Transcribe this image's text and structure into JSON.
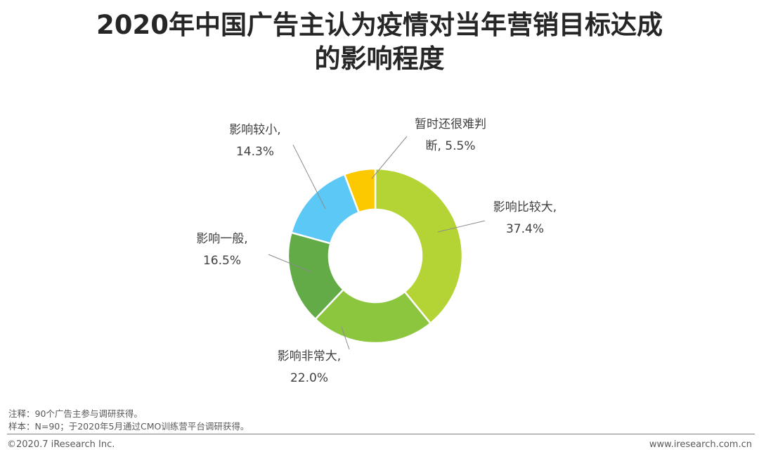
{
  "title": {
    "line1": "2020年中国广告主认为疫情对当年营销目标达成",
    "line2": "的影响程度"
  },
  "chart_data": {
    "type": "pie",
    "donut": true,
    "unit": "%",
    "slices": [
      {
        "label_line1": "影响比较大,",
        "label_line2": "37.4%",
        "name": "影响比较大",
        "value": 37.4,
        "color": "#b4d334"
      },
      {
        "label_line1": "影响非常大,",
        "label_line2": "22.0%",
        "name": "影响非常大",
        "value": 22.0,
        "color": "#8cc63f"
      },
      {
        "label_line1": "影响一般,",
        "label_line2": "16.5%",
        "name": "影响一般",
        "value": 16.5,
        "color": "#62ab46"
      },
      {
        "label_line1": "影响较小,",
        "label_line2": "14.3%",
        "name": "影响较小",
        "value": 14.3,
        "color": "#5bc8f5"
      },
      {
        "label_line1": "暂时还很难判",
        "label_line2": "断, 5.5%",
        "name": "暂时还很难判断",
        "value": 5.5,
        "color": "#fcc800"
      }
    ]
  },
  "notes": {
    "note": "注释：90个广告主参与调研获得。",
    "sample": "样本：N=90；于2020年5月通过CMO训练营平台调研获得。"
  },
  "footer": {
    "copyright": "©2020.7 iResearch Inc.",
    "website": "www.iresearch.com.cn"
  }
}
